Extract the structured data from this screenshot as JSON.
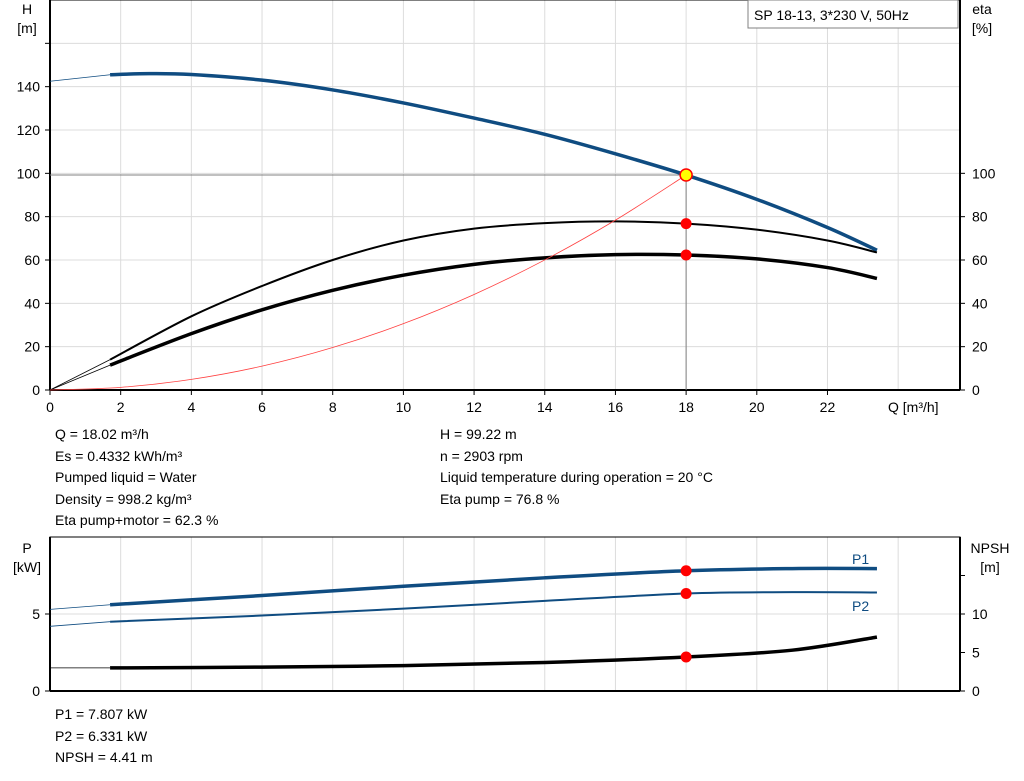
{
  "chart_data": [
    {
      "type": "line",
      "title": "SP 18-13, 3*230 V, 50Hz",
      "xlabel": "Q [m³/h]",
      "ylabel": "H\n[m]",
      "y2label": "eta\n[%]",
      "xlim": [
        0,
        25.75
      ],
      "ylim": [
        0,
        180
      ],
      "y2lim": [
        0,
        180
      ],
      "xticks": [
        0,
        2,
        4,
        6,
        8,
        10,
        12,
        14,
        16,
        18,
        20,
        22
      ],
      "yticks": [
        0,
        20,
        40,
        60,
        80,
        100,
        120,
        140
      ],
      "y2ticks": [
        0,
        20,
        40,
        60,
        80,
        100
      ],
      "grid": true,
      "series": [
        {
          "id": "H",
          "axis": "left",
          "color": "#0f4c81",
          "x": [
            0,
            1.7,
            2.8,
            4,
            6,
            8,
            10,
            12,
            14,
            16,
            18,
            20,
            22,
            23.4
          ],
          "y": [
            142.5,
            145.5,
            146,
            145.6,
            143,
            138.5,
            132.5,
            125.5,
            118,
            109,
            99.22,
            88,
            75,
            64.5
          ]
        },
        {
          "id": "eta-pump",
          "axis": "right",
          "color": "#000000",
          "x": [
            0,
            1.7,
            4,
            6,
            8,
            10,
            12,
            14,
            16,
            18,
            20,
            22,
            23.4
          ],
          "y": [
            0,
            14,
            34,
            48,
            60,
            69,
            74.5,
            77,
            77.8,
            76.8,
            74,
            69,
            63.5
          ]
        },
        {
          "id": "eta-pump-motor",
          "axis": "right",
          "color": "#000000",
          "x": [
            0,
            1.7,
            4,
            6,
            8,
            10,
            12,
            14,
            16,
            18,
            20,
            22,
            23.4
          ],
          "y": [
            0,
            11.5,
            26,
            37,
            46,
            53,
            58,
            61,
            62.5,
            62.3,
            60.5,
            56.5,
            51.5
          ]
        },
        {
          "id": "system-curve",
          "axis": "left",
          "color": "#ff4040",
          "x": [
            0,
            2,
            4,
            6,
            8,
            10,
            12,
            14,
            16,
            18
          ],
          "y": [
            0,
            1.22,
            4.9,
            11.02,
            19.6,
            30.62,
            44.1,
            60.02,
            78.4,
            99.22
          ]
        }
      ],
      "duty_point": {
        "x": 18,
        "H": 99.22,
        "eta_pump": 76.8,
        "eta_pump_motor": 62.3
      }
    },
    {
      "type": "line",
      "ylabel": "P\n[kW]",
      "y2label": "NPSH\n[m]",
      "xlim": [
        0,
        25.75
      ],
      "ylim": [
        0,
        10
      ],
      "y2lim": [
        0,
        20
      ],
      "yticks": [
        0,
        5
      ],
      "y2ticks": [
        0,
        5,
        10,
        15
      ],
      "y2ticklabels": [
        "0",
        "5",
        "10",
        ""
      ],
      "grid": true,
      "series": [
        {
          "name": "P1",
          "axis": "left",
          "color": "#0f4c81",
          "x": [
            0,
            1.7,
            6,
            10,
            14,
            18,
            21,
            23.4
          ],
          "y": [
            5.3,
            5.6,
            6.2,
            6.8,
            7.35,
            7.807,
            7.95,
            7.95
          ]
        },
        {
          "name": "P2",
          "axis": "left",
          "color": "#0f4c81",
          "x": [
            0,
            1.7,
            6,
            10,
            14,
            18,
            21,
            23.4
          ],
          "y": [
            4.2,
            4.5,
            4.9,
            5.35,
            5.85,
            6.331,
            6.42,
            6.4
          ]
        },
        {
          "id": "NPSH",
          "axis": "right",
          "color": "#000000",
          "x": [
            0,
            1.7,
            6,
            10,
            14,
            18,
            21,
            23.4
          ],
          "y": [
            3,
            3,
            3.1,
            3.3,
            3.7,
            4.41,
            5.3,
            7
          ]
        }
      ],
      "duty_point": {
        "x": 18,
        "P1": 7.807,
        "P2": 6.331,
        "NPSH": 4.41
      }
    }
  ],
  "info_left": [
    "Q = 18.02 m³/h",
    "Es = 0.4332 kWh/m³",
    "Pumped liquid = Water",
    "Density = 998.2 kg/m³",
    "Eta pump+motor = 62.3 %"
  ],
  "info_right": [
    "H = 99.22 m",
    "n = 2903 rpm",
    "Liquid temperature during operation = 20 °C",
    "Eta pump = 76.8 %"
  ],
  "info_bottom": [
    "P1 = 7.807 kW",
    "P2 = 6.331 kW",
    "NPSH = 4.41 m"
  ]
}
